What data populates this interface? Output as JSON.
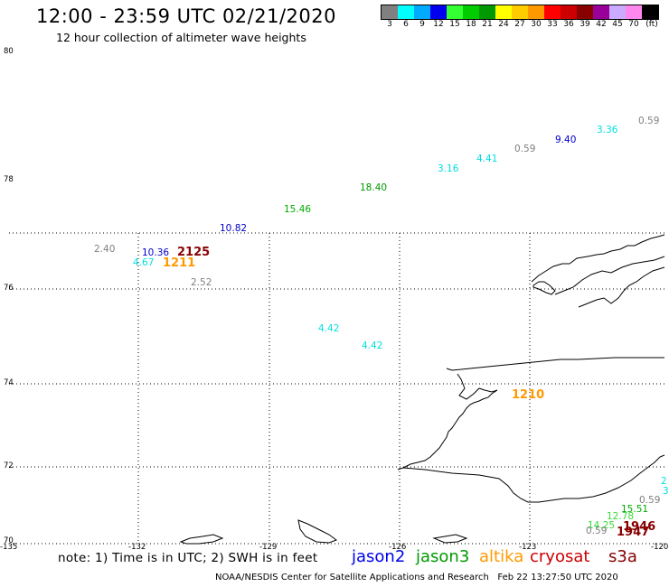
{
  "title": "12:00 - 23:59 UTC 02/21/2020",
  "subtitle": "12 hour collection of altimeter wave heights",
  "legend": {
    "unit": "(ft)",
    "bins": [
      {
        "label": "3",
        "color": "#808080"
      },
      {
        "label": "6",
        "color": "#00ffff"
      },
      {
        "label": "9",
        "color": "#00aaff"
      },
      {
        "label": "12",
        "color": "#0000ee"
      },
      {
        "label": "15",
        "color": "#33ff33"
      },
      {
        "label": "18",
        "color": "#00cc00"
      },
      {
        "label": "21",
        "color": "#009900"
      },
      {
        "label": "24",
        "color": "#ffff00"
      },
      {
        "label": "27",
        "color": "#ffcc00"
      },
      {
        "label": "30",
        "color": "#ff9900"
      },
      {
        "label": "33",
        "color": "#ff0000"
      },
      {
        "label": "36",
        "color": "#cc0000"
      },
      {
        "label": "39",
        "color": "#880000"
      },
      {
        "label": "42",
        "color": "#990099"
      },
      {
        "label": "45",
        "color": "#ccaaff"
      },
      {
        "label": "70",
        "color": "#ff88ee"
      },
      {
        "label": "",
        "color": "#000000"
      }
    ]
  },
  "map": {
    "lat_labels": [
      "80",
      "78",
      "76",
      "74",
      "72",
      "70"
    ],
    "lon_labels": [
      "-135",
      "-132",
      "-129",
      "-126",
      "-123",
      "-120"
    ]
  },
  "observations": [
    {
      "text": "0.59",
      "color": "#808080"
    },
    {
      "text": "3.36",
      "color": "#00e0e0"
    },
    {
      "text": "9.40",
      "color": "#0000cc"
    },
    {
      "text": "0.59",
      "color": "#808080"
    },
    {
      "text": "4.41",
      "color": "#00e0e0"
    },
    {
      "text": "3.16",
      "color": "#00e0e0"
    },
    {
      "text": "18.40",
      "color": "#009900"
    },
    {
      "text": "15.46",
      "color": "#00aa00"
    },
    {
      "text": "10.82",
      "color": "#0000cc"
    },
    {
      "text": "2.40",
      "color": "#808080"
    },
    {
      "text": "10.36",
      "color": "#0000cc"
    },
    {
      "text": "2125",
      "color": "#880000"
    },
    {
      "text": "4.67",
      "color": "#00e0e0"
    },
    {
      "text": "1211",
      "color": "#ff9900"
    },
    {
      "text": "2.52",
      "color": "#808080"
    },
    {
      "text": "4.42",
      "color": "#00e0e0"
    },
    {
      "text": "4.42",
      "color": "#00e0e0"
    },
    {
      "text": "1210",
      "color": "#ff9900"
    },
    {
      "text": "0.59",
      "color": "#808080"
    },
    {
      "text": "15.51",
      "color": "#00aa00"
    },
    {
      "text": "12.78",
      "color": "#33dd33"
    },
    {
      "text": "14.25",
      "color": "#33dd33"
    },
    {
      "text": "1946",
      "color": "#880000"
    },
    {
      "text": "0.59",
      "color": "#808080"
    },
    {
      "text": "1947",
      "color": "#880000"
    },
    {
      "text": "3.",
      "color": "#00e0e0"
    },
    {
      "text": "2",
      "color": "#00e0e0"
    }
  ],
  "note": "note: 1) Time is in UTC; 2) SWH is in feet",
  "satellites": [
    {
      "name": "jason2",
      "color": "#0000ee"
    },
    {
      "name": "jason3",
      "color": "#009900"
    },
    {
      "name": "altika",
      "color": "#ff9900"
    },
    {
      "name": "cryosat",
      "color": "#cc0000"
    },
    {
      "name": "s3a",
      "color": "#880000"
    }
  ],
  "credit": "NOAA/NESDIS Center for Satellite Applications and Research",
  "timestamp": "Feb 22 13:27:50 UTC 2020"
}
